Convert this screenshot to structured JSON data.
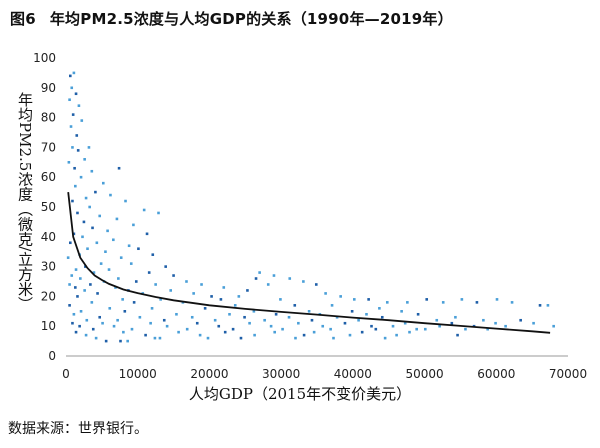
{
  "figure": {
    "number": "图6",
    "title": "年均PM2.5浓度与人均GDP的关系（1990年—2019年）"
  },
  "source_note": "数据来源：世界银行。",
  "colors": {
    "point_dark": "#1f5fa8",
    "point_light": "#4a9fd8",
    "trend_line": "#111111"
  },
  "chart_data": {
    "type": "scatter",
    "title": "年均PM2.5浓度与人均GDP的关系（1990年—2019年）",
    "xlabel": "人均GDP（2015年不变价美元）",
    "ylabel": "年均PM2.5浓度（微克/立方米）",
    "xlim": [
      0,
      70000
    ],
    "ylim": [
      0,
      100
    ],
    "x_ticks": [
      0,
      10000,
      20000,
      30000,
      40000,
      50000,
      60000,
      70000
    ],
    "y_ticks": [
      0,
      10,
      20,
      30,
      40,
      50,
      60,
      70,
      80,
      90,
      100
    ],
    "grid": false,
    "legend": "none",
    "series": [
      {
        "kind": "points",
        "points": [
          [
            600,
            94
          ],
          [
            1100,
            95
          ],
          [
            800,
            90
          ],
          [
            1400,
            88
          ],
          [
            500,
            86
          ],
          [
            1800,
            84
          ],
          [
            1000,
            81
          ],
          [
            2200,
            79
          ],
          [
            700,
            77
          ],
          [
            1500,
            74
          ],
          [
            3200,
            70
          ],
          [
            900,
            70
          ],
          [
            1700,
            69
          ],
          [
            2600,
            66
          ],
          [
            400,
            65
          ],
          [
            1200,
            63
          ],
          [
            3600,
            62
          ],
          [
            2100,
            60
          ],
          [
            7400,
            63
          ],
          [
            5200,
            58
          ],
          [
            1300,
            57
          ],
          [
            4100,
            55
          ],
          [
            2800,
            53
          ],
          [
            6200,
            54
          ],
          [
            900,
            52
          ],
          [
            3300,
            50
          ],
          [
            8300,
            52
          ],
          [
            1600,
            48
          ],
          [
            4700,
            47
          ],
          [
            10900,
            49
          ],
          [
            2500,
            45
          ],
          [
            7100,
            46
          ],
          [
            12900,
            48
          ],
          [
            3700,
            43
          ],
          [
            5800,
            42
          ],
          [
            9400,
            44
          ],
          [
            1100,
            41
          ],
          [
            2300,
            40
          ],
          [
            6600,
            39
          ],
          [
            11300,
            41
          ],
          [
            4300,
            38
          ],
          [
            8800,
            37
          ],
          [
            600,
            38
          ],
          [
            3000,
            36
          ],
          [
            5500,
            35
          ],
          [
            10100,
            36
          ],
          [
            1900,
            34
          ],
          [
            7700,
            33
          ],
          [
            12100,
            34
          ],
          [
            300,
            33
          ],
          [
            4900,
            31
          ],
          [
            2700,
            30
          ],
          [
            9100,
            31
          ],
          [
            6000,
            29
          ],
          [
            13900,
            30
          ],
          [
            1400,
            29
          ],
          [
            3900,
            28
          ],
          [
            11600,
            28
          ],
          [
            800,
            27
          ],
          [
            7300,
            26
          ],
          [
            15000,
            27
          ],
          [
            2000,
            26
          ],
          [
            5300,
            25
          ],
          [
            9800,
            25
          ],
          [
            16800,
            25
          ],
          [
            500,
            24
          ],
          [
            3400,
            24
          ],
          [
            12500,
            24
          ],
          [
            18900,
            24
          ],
          [
            1300,
            23
          ],
          [
            6900,
            23
          ],
          [
            22000,
            23
          ],
          [
            8700,
            22
          ],
          [
            2600,
            22
          ],
          [
            14600,
            22
          ],
          [
            25300,
            22
          ],
          [
            27000,
            28
          ],
          [
            29000,
            27
          ],
          [
            26500,
            26
          ],
          [
            31200,
            26
          ],
          [
            33100,
            25
          ],
          [
            34900,
            24
          ],
          [
            28200,
            24
          ],
          [
            24100,
            20
          ],
          [
            4400,
            21
          ],
          [
            10700,
            21
          ],
          [
            17800,
            21
          ],
          [
            20300,
            20
          ],
          [
            36200,
            21
          ],
          [
            38300,
            20
          ],
          [
            1600,
            20
          ],
          [
            7900,
            19
          ],
          [
            13200,
            19
          ],
          [
            21600,
            19
          ],
          [
            29900,
            19
          ],
          [
            40200,
            19
          ],
          [
            42200,
            19
          ],
          [
            44800,
            18
          ],
          [
            47600,
            18
          ],
          [
            50300,
            19
          ],
          [
            52600,
            18
          ],
          [
            55200,
            19
          ],
          [
            57300,
            18
          ],
          [
            60100,
            19
          ],
          [
            62200,
            18
          ],
          [
            66100,
            17
          ],
          [
            67200,
            17
          ],
          [
            3600,
            18
          ],
          [
            9500,
            18
          ],
          [
            16300,
            18
          ],
          [
            23600,
            17
          ],
          [
            31900,
            17
          ],
          [
            37100,
            17
          ],
          [
            43700,
            16
          ],
          [
            500,
            17
          ],
          [
            6100,
            16
          ],
          [
            12000,
            16
          ],
          [
            19400,
            16
          ],
          [
            26200,
            15
          ],
          [
            33900,
            15
          ],
          [
            39900,
            15
          ],
          [
            46800,
            15
          ],
          [
            2100,
            15
          ],
          [
            8200,
            15
          ],
          [
            15400,
            14
          ],
          [
            22800,
            14
          ],
          [
            29300,
            14
          ],
          [
            35400,
            14
          ],
          [
            41900,
            14
          ],
          [
            49100,
            14
          ],
          [
            54300,
            13
          ],
          [
            1100,
            14
          ],
          [
            4700,
            13
          ],
          [
            10300,
            13
          ],
          [
            17600,
            13
          ],
          [
            24900,
            13
          ],
          [
            31100,
            13
          ],
          [
            37800,
            13
          ],
          [
            44100,
            13
          ],
          [
            51700,
            12
          ],
          [
            58200,
            12
          ],
          [
            63400,
            12
          ],
          [
            2900,
            12
          ],
          [
            7200,
            12
          ],
          [
            13700,
            12
          ],
          [
            20800,
            12
          ],
          [
            27700,
            12
          ],
          [
            34300,
            12
          ],
          [
            40800,
            12
          ],
          [
            47300,
            11
          ],
          [
            53800,
            11
          ],
          [
            59900,
            11
          ],
          [
            65200,
            11
          ],
          [
            900,
            11
          ],
          [
            5100,
            11
          ],
          [
            11800,
            11
          ],
          [
            18300,
            11
          ],
          [
            25600,
            11
          ],
          [
            32400,
            11
          ],
          [
            38900,
            11
          ],
          [
            45600,
            10
          ],
          [
            52100,
            10
          ],
          [
            56900,
            10
          ],
          [
            61300,
            10
          ],
          [
            68000,
            10
          ],
          [
            1900,
            10
          ],
          [
            6700,
            10
          ],
          [
            14100,
            10
          ],
          [
            21300,
            10
          ],
          [
            28600,
            10
          ],
          [
            35800,
            10
          ],
          [
            42600,
            10
          ],
          [
            48900,
            9
          ],
          [
            55700,
            9
          ],
          [
            3800,
            9
          ],
          [
            9200,
            9
          ],
          [
            16900,
            9
          ],
          [
            23300,
            9
          ],
          [
            30200,
            9
          ],
          [
            36900,
            9
          ],
          [
            43200,
            9
          ],
          [
            50100,
            9
          ],
          [
            58800,
            9
          ],
          [
            1400,
            8
          ],
          [
            8000,
            8
          ],
          [
            15700,
            8
          ],
          [
            22200,
            8
          ],
          [
            29100,
            8
          ],
          [
            34600,
            8
          ],
          [
            41300,
            8
          ],
          [
            47900,
            8
          ],
          [
            2800,
            7
          ],
          [
            11100,
            7
          ],
          [
            18700,
            7
          ],
          [
            26300,
            7
          ],
          [
            33200,
            7
          ],
          [
            39600,
            7
          ],
          [
            46100,
            7
          ],
          [
            54600,
            7
          ],
          [
            4200,
            6
          ],
          [
            13100,
            6
          ],
          [
            24400,
            6
          ],
          [
            32000,
            6
          ],
          [
            44500,
            6
          ],
          [
            7600,
            5
          ],
          [
            19800,
            6
          ],
          [
            37300,
            6
          ],
          [
            5600,
            5
          ],
          [
            8600,
            5
          ],
          [
            12400,
            6
          ]
        ]
      },
      {
        "name": "",
        "kind": "trend",
        "x": [
          300,
          1000,
          2000,
          3000,
          4000,
          5000,
          6000,
          8000,
          10000,
          12500,
          15000,
          20000,
          25000,
          30000,
          35000,
          40000,
          45000,
          50000,
          55000,
          60000,
          65000,
          67500
        ],
        "y": [
          55,
          40,
          33,
          29.5,
          27,
          25.5,
          24.2,
          22.3,
          21.1,
          19.8,
          18.7,
          17.0,
          15.8,
          14.8,
          13.9,
          12.9,
          12.0,
          11.0,
          10.1,
          9.2,
          8.3,
          7.8
        ]
      }
    ]
  }
}
